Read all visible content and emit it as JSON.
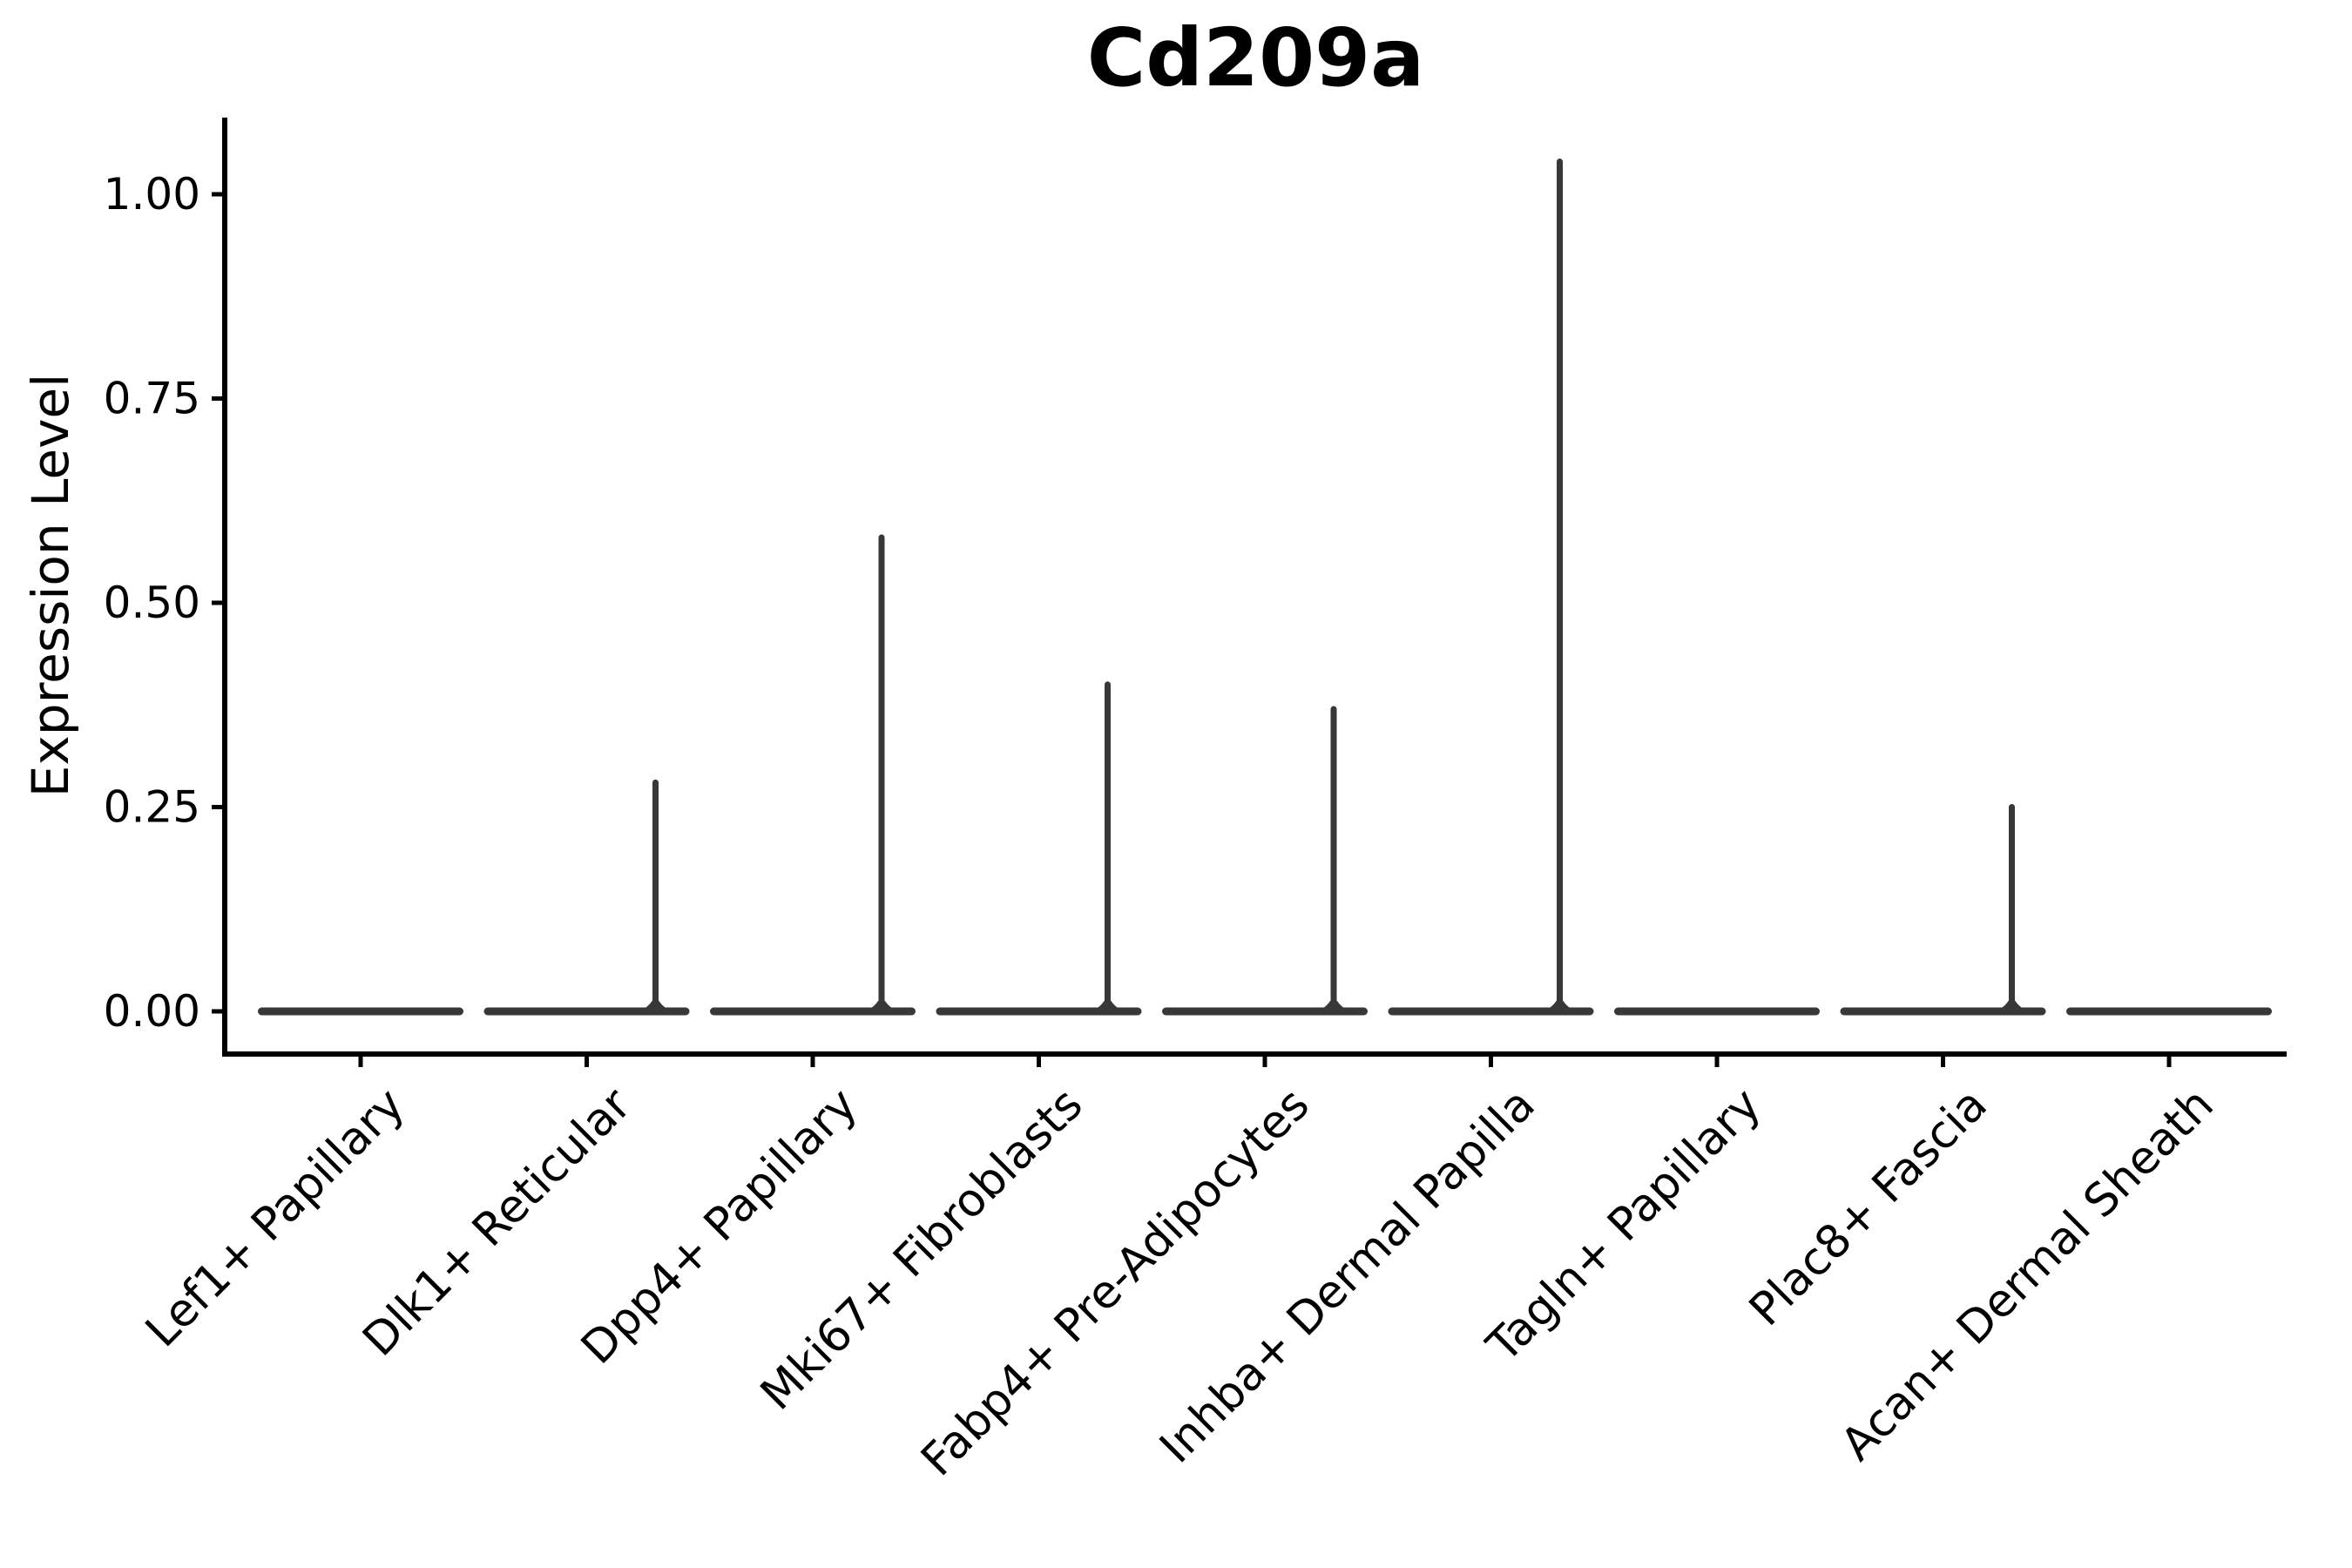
{
  "title": "Cd209a",
  "ylabel": "Expression Level",
  "y_ticks": [
    "0.00",
    "0.25",
    "0.50",
    "0.75",
    "1.00"
  ],
  "colors": {
    "violin": "#383838",
    "axis": "#000000",
    "background": "#ffffff",
    "text": "#000000"
  },
  "chart_data": {
    "type": "violin",
    "title": "Cd209a",
    "xlabel": "",
    "ylabel": "Expression Level",
    "categories": [
      "Lef1+ Papillary",
      "Dlk1+ Reticular",
      "Dpp4+ Papillary",
      "Mki67+ Fibroblasts",
      "Fabp4+ Pre-Adipocytes",
      "Inhba+ Dermal Papilla",
      "Tagln+ Papillary",
      "Plac8+ Fascia",
      "Acan+ Dermal Sheath"
    ],
    "series": [
      {
        "name": "max expression spike height",
        "values": [
          0,
          0.28,
          0.58,
          0.4,
          0.37,
          1.04,
          0,
          0.25,
          0
        ]
      }
    ],
    "baseline_value": 0.0,
    "y_tick_values": [
      0,
      0.25,
      0.5,
      0.75,
      1.0
    ],
    "ylim": [
      -0.05,
      1.09
    ],
    "grid": false,
    "legend": "none",
    "x_tick_rotation_deg": 45,
    "description": "Flat violin bodies at expression 0 for every cluster; thin vertical density spikes rise for Dlk1+ Reticular, Dpp4+ Papillary, Mki67+ Fibroblasts, Fabp4+ Pre-Adipocytes, Inhba+ Dermal Papilla and Plac8+ Fascia."
  }
}
